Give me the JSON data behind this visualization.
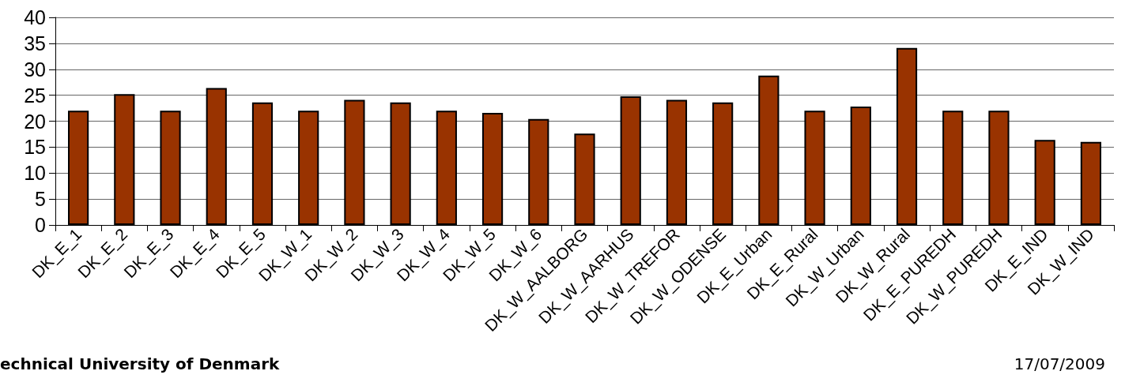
{
  "chart_data": {
    "type": "bar",
    "categories": [
      "DK_E_1",
      "DK_E_2",
      "DK_E_3",
      "DK_E_4",
      "DK_E_5",
      "DK_W_1",
      "DK_W_2",
      "DK_W_3",
      "DK_W_4",
      "DK_W_5",
      "DK_W_6",
      "DK_W_AALBORG",
      "DK_W_AARHUS",
      "DK_W_TREFOR",
      "DK_W_ODENSE",
      "DK_E_Urban",
      "DK_E_Rural",
      "DK_W_Urban",
      "DK_W_Rural",
      "DK_E_PUREDH",
      "DK_W_PUREDH",
      "DK_E_IND",
      "DK_W_IND"
    ],
    "values": [
      22,
      25.2,
      22,
      26.4,
      23.6,
      22,
      24.1,
      23.6,
      22,
      21.6,
      20.4,
      17.6,
      24.8,
      24.1,
      23.6,
      28.8,
      22,
      22.8,
      34.1,
      22,
      22,
      16.4,
      16
    ],
    "color": "#993300",
    "ylim": [
      0,
      40
    ],
    "yticks": [
      0,
      5,
      10,
      15,
      20,
      25,
      30,
      35,
      40
    ],
    "grid": "y",
    "annotations": [
      "echnical University of Denmark",
      "17/07/2009"
    ]
  }
}
